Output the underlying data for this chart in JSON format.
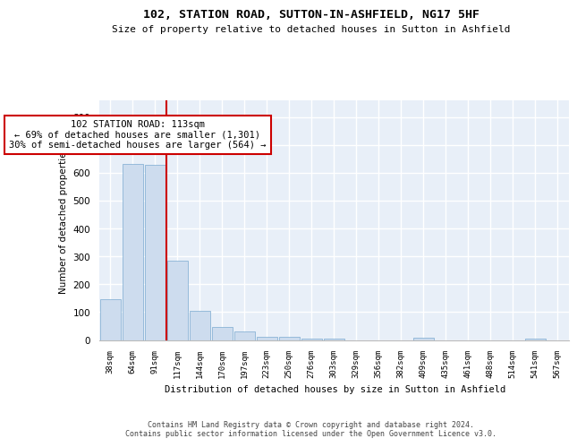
{
  "title": "102, STATION ROAD, SUTTON-IN-ASHFIELD, NG17 5HF",
  "subtitle": "Size of property relative to detached houses in Sutton in Ashfield",
  "xlabel": "Distribution of detached houses by size in Sutton in Ashfield",
  "ylabel": "Number of detached properties",
  "bar_color": "#cddcee",
  "bar_edge_color": "#7aaad0",
  "background_color": "#e8eff8",
  "grid_color": "#ffffff",
  "annotation_line_color": "#cc0000",
  "annotation_text": "102 STATION ROAD: 113sqm\n← 69% of detached houses are smaller (1,301)\n30% of semi-detached houses are larger (564) →",
  "footer": "Contains HM Land Registry data © Crown copyright and database right 2024.\nContains public sector information licensed under the Open Government Licence v3.0.",
  "tick_labels": [
    "38sqm",
    "64sqm",
    "91sqm",
    "117sqm",
    "144sqm",
    "170sqm",
    "197sqm",
    "223sqm",
    "250sqm",
    "276sqm",
    "303sqm",
    "329sqm",
    "356sqm",
    "382sqm",
    "409sqm",
    "435sqm",
    "461sqm",
    "488sqm",
    "514sqm",
    "541sqm",
    "567sqm"
  ],
  "bar_heights": [
    148,
    632,
    628,
    285,
    104,
    46,
    32,
    11,
    11,
    6,
    6,
    0,
    0,
    0,
    8,
    0,
    0,
    0,
    0,
    6,
    0
  ],
  "property_bin": 3,
  "ylim": [
    0,
    860
  ],
  "yticks": [
    0,
    100,
    200,
    300,
    400,
    500,
    600,
    700,
    800
  ]
}
